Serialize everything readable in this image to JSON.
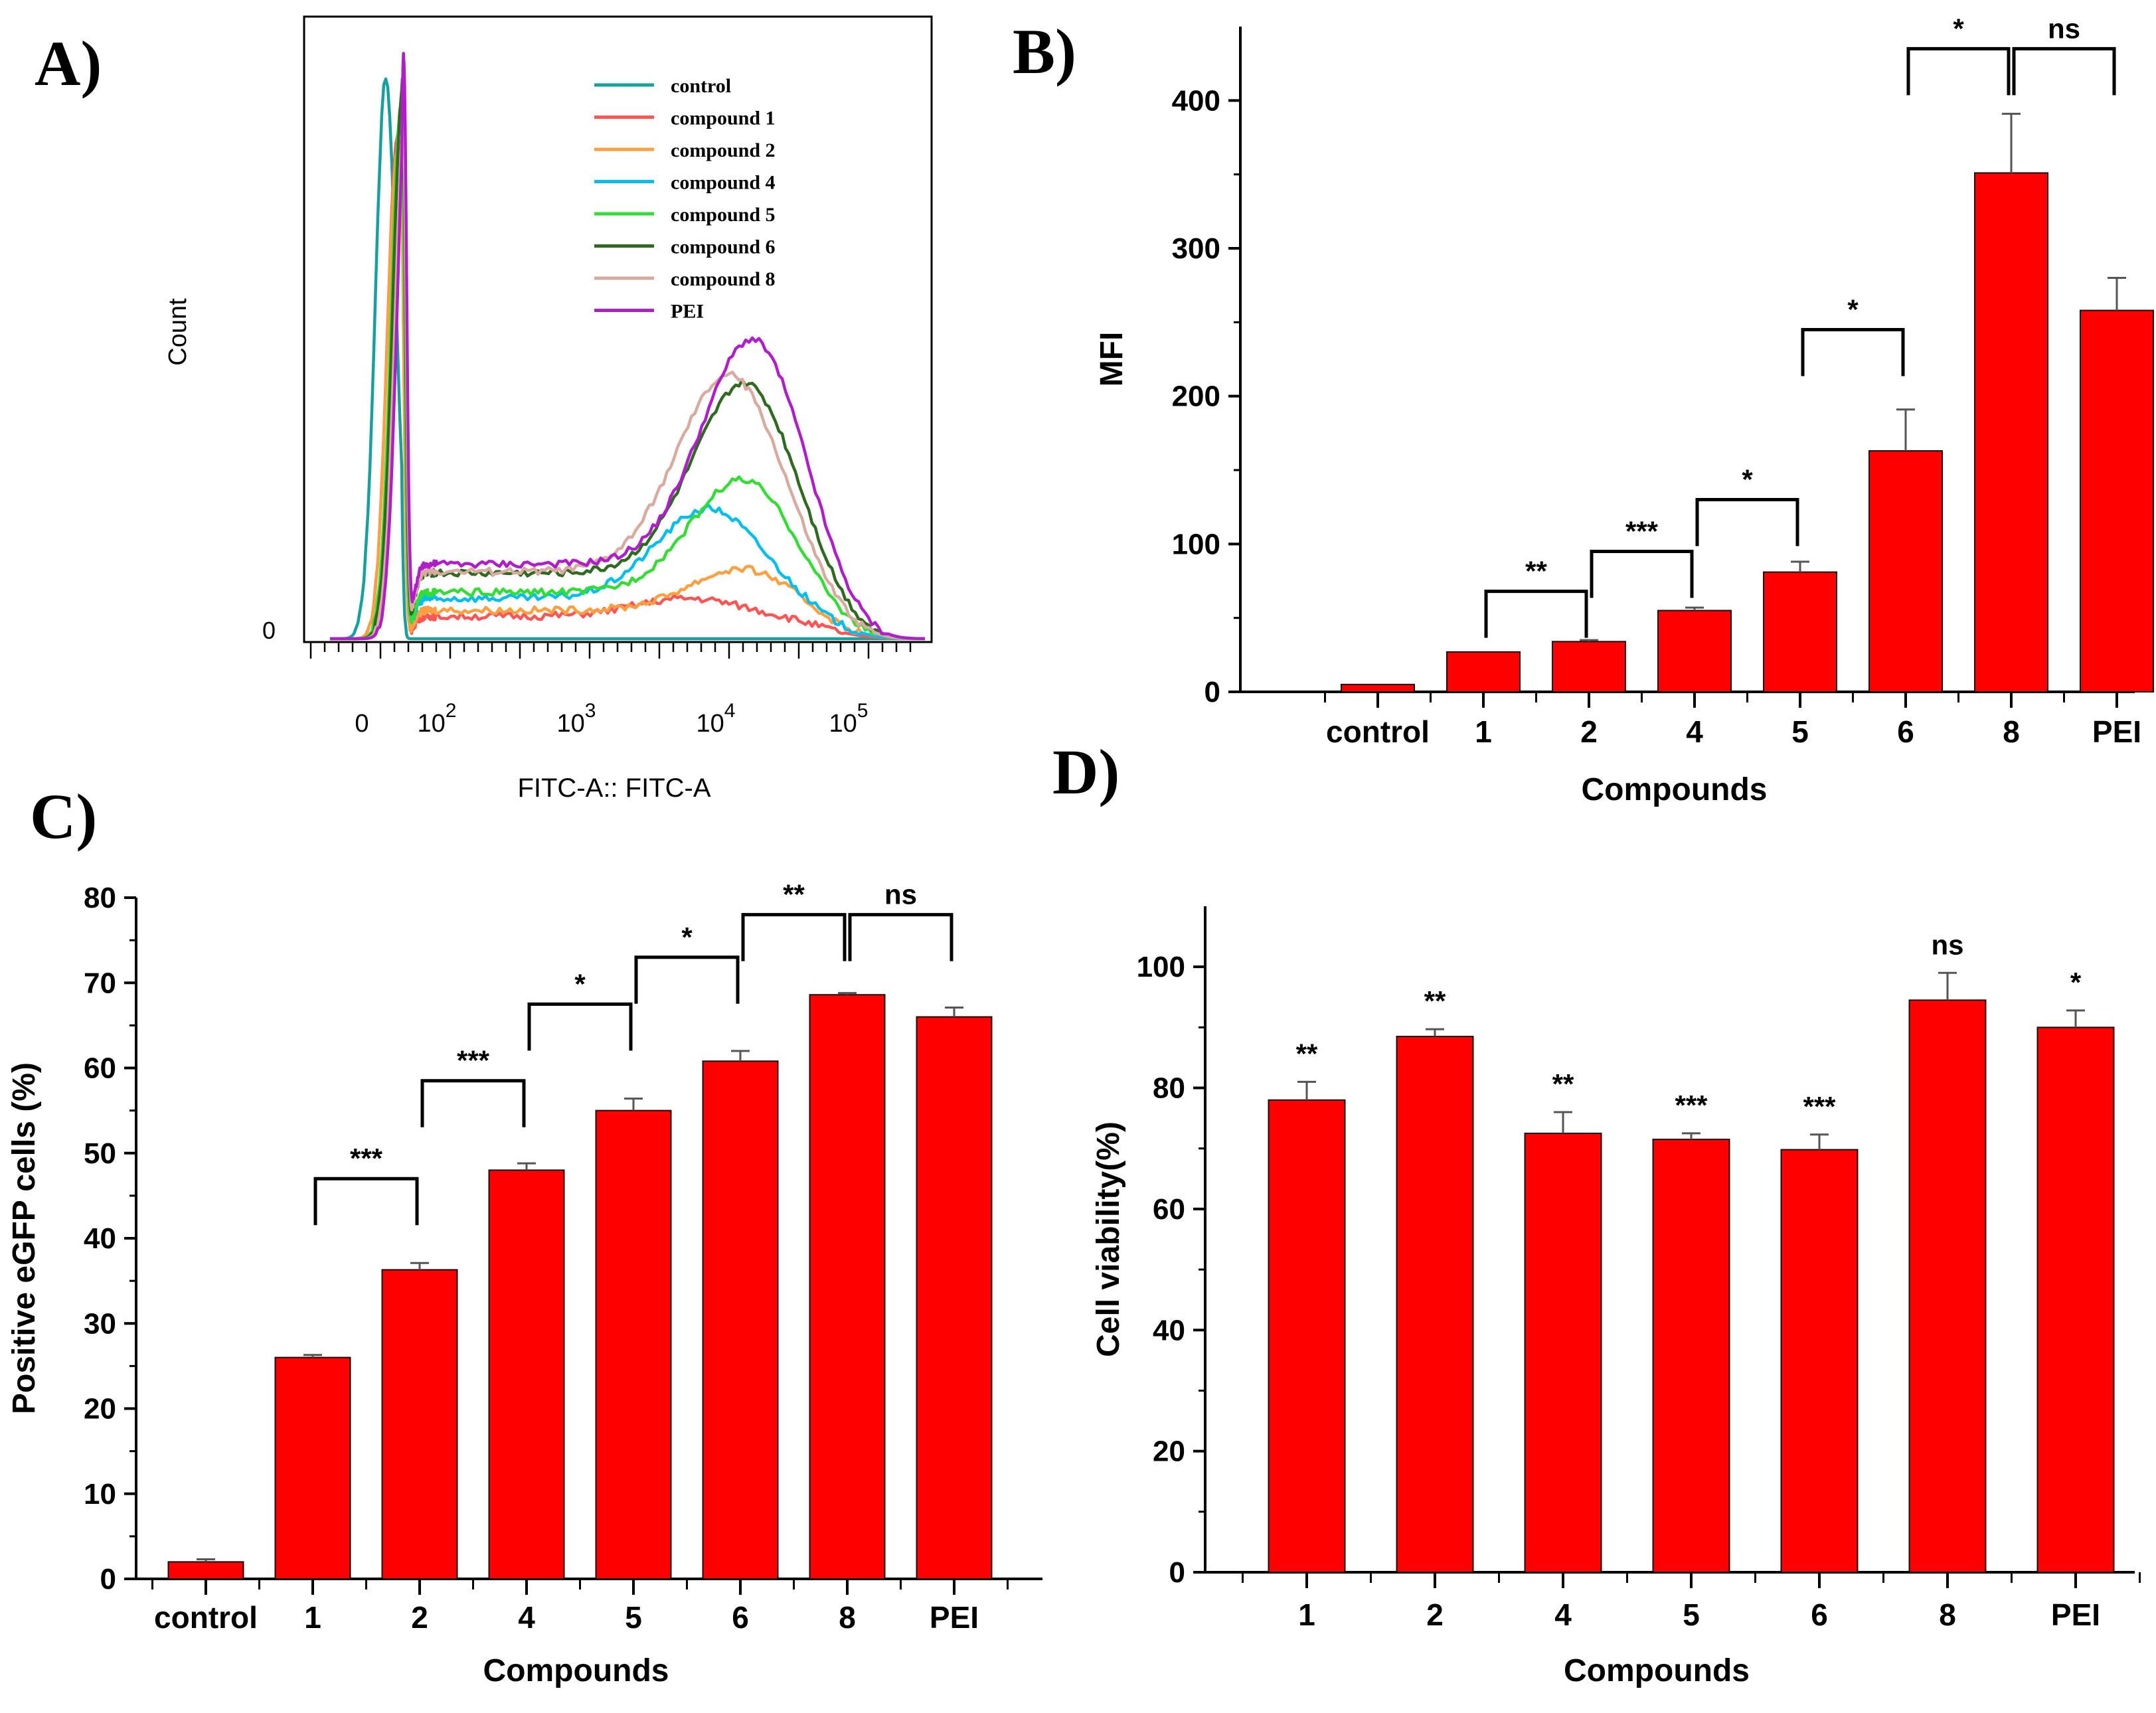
{
  "colors": {
    "bar": "#ff0000",
    "axis": "#000000"
  },
  "chart_data": [
    {
      "panel": "A)",
      "type": "line",
      "subtype": "flow-cytometry-histogram",
      "xlabel": "FITC-A:: FITC-A",
      "ylabel": "Count",
      "x_scale": "biexponential",
      "x_ticklabels": [
        "0",
        "10",
        "10",
        "10",
        "10"
      ],
      "x_tickexponents": [
        "",
        "2",
        "3",
        "4",
        "5"
      ],
      "y_ticklabels": [
        "0"
      ],
      "legend": "top-right",
      "series": [
        {
          "name": "control",
          "color": "#17a0a0",
          "low_peak_x": 0.3,
          "low_peak": 0.94,
          "high_peak_x": 4.3,
          "high_peak": 0.0
        },
        {
          "name": "compound 1",
          "color": "#ff5555",
          "low_peak_x": 0.45,
          "low_peak": 0.84,
          "high_peak_x": 3.8,
          "high_peak": 0.03
        },
        {
          "name": "compound 2",
          "color": "#ffa040",
          "low_peak_x": 0.45,
          "low_peak": 0.82,
          "high_peak_x": 4.2,
          "high_peak": 0.07
        },
        {
          "name": "compound 4",
          "color": "#00bfee",
          "low_peak_x": 0.5,
          "low_peak": 0.88,
          "high_peak_x": 3.95,
          "high_peak": 0.15
        },
        {
          "name": "compound 5",
          "color": "#33dd33",
          "low_peak_x": 0.5,
          "low_peak": 0.9,
          "high_peak_x": 4.2,
          "high_peak": 0.19
        },
        {
          "name": "compound 6",
          "color": "#2e6b1f",
          "low_peak_x": 0.52,
          "low_peak": 0.93,
          "high_peak_x": 4.22,
          "high_peak": 0.32
        },
        {
          "name": "compound 8",
          "color": "#d9aaa0",
          "low_peak_x": 0.55,
          "low_peak": 0.9,
          "high_peak_x": 4.1,
          "high_peak": 0.33
        },
        {
          "name": "PEI",
          "color": "#b01ecc",
          "low_peak_x": 0.58,
          "low_peak": 0.97,
          "high_peak_x": 4.28,
          "high_peak": 0.38
        }
      ]
    },
    {
      "panel": "B)",
      "type": "bar",
      "xlabel": "Compounds",
      "ylabel": "MFI",
      "ylim": [
        0,
        450
      ],
      "yticks": [
        0,
        100,
        200,
        300,
        400
      ],
      "categories": [
        "control",
        "1",
        "2",
        "4",
        "5",
        "6",
        "8",
        "PEI"
      ],
      "values": [
        5,
        27,
        34,
        55,
        81,
        163,
        351,
        258
      ],
      "errors": [
        0,
        0,
        1,
        2,
        7,
        28,
        40,
        22
      ],
      "comparisons": [
        {
          "from": 1,
          "to": 2,
          "label": "**",
          "y": 68
        },
        {
          "from": 2,
          "to": 3,
          "label": "***",
          "y": 95
        },
        {
          "from": 3,
          "to": 4,
          "label": "*",
          "y": 130
        },
        {
          "from": 4,
          "to": 5,
          "label": "*",
          "y": 245
        },
        {
          "from": 5,
          "to": 6,
          "label": "*",
          "y": 435
        },
        {
          "from": 6,
          "to": 7,
          "label": "ns",
          "y": 435
        }
      ]
    },
    {
      "panel": "C)",
      "type": "bar",
      "xlabel": "Compounds",
      "ylabel": "Positive eGFP cells (%)",
      "ylim": [
        0,
        80
      ],
      "yticks": [
        0,
        10,
        20,
        30,
        40,
        50,
        60,
        70,
        80
      ],
      "categories": [
        "control",
        "1",
        "2",
        "4",
        "5",
        "6",
        "8",
        "PEI"
      ],
      "values": [
        2,
        26,
        36.3,
        48,
        55,
        60.8,
        68.6,
        66
      ],
      "errors": [
        0.3,
        0.3,
        0.8,
        0.8,
        1.4,
        1.2,
        0.2,
        1.1
      ],
      "comparisons": [
        {
          "from": 1,
          "to": 2,
          "label": "***",
          "y": 47
        },
        {
          "from": 2,
          "to": 3,
          "label": "***",
          "y": 58.5
        },
        {
          "from": 3,
          "to": 4,
          "label": "*",
          "y": 67.5
        },
        {
          "from": 4,
          "to": 5,
          "label": "*",
          "y": 73
        },
        {
          "from": 5,
          "to": 6,
          "label": "**",
          "y": 78
        },
        {
          "from": 6,
          "to": 7,
          "label": "ns",
          "y": 78
        }
      ]
    },
    {
      "panel": "D)",
      "type": "bar",
      "xlabel": "Compounds",
      "ylabel": "Cell viability(%)",
      "ylim": [
        0,
        110
      ],
      "yticks": [
        0,
        20,
        40,
        60,
        80,
        100
      ],
      "categories": [
        "1",
        "2",
        "4",
        "5",
        "6",
        "8",
        "PEI"
      ],
      "values": [
        78,
        88.5,
        72.5,
        71.5,
        69.8,
        94.5,
        90
      ],
      "errors": [
        3,
        1.2,
        3.5,
        1,
        2.5,
        4.5,
        2.8
      ],
      "significance": [
        "**",
        "**",
        "**",
        "***",
        "***",
        "ns",
        "*"
      ]
    }
  ]
}
